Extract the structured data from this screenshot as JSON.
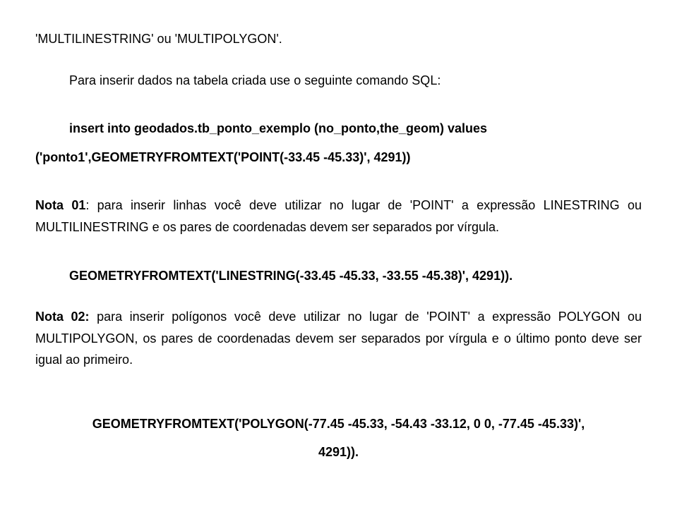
{
  "line1": "'MULTILINESTRING' ou 'MULTIPOLYGON'.",
  "line2": "Para inserir dados na tabela criada use o seguinte comando SQL:",
  "code_block_1_line1": "insert into geodados.tb_ponto_exemplo (no_ponto,the_geom) values",
  "code_block_1_line2": "('ponto1',GEOMETRYFROMTEXT('POINT(-33.45 -45.33)', 4291))",
  "nota01_label": "Nota 01",
  "nota01_text": ": para inserir linhas você deve utilizar no lugar de 'POINT' a expressão LINESTRING ou MULTILINESTRING e os pares de coordenadas devem ser separados por vírgula.",
  "code_block_2": "GEOMETRYFROMTEXT('LINESTRING(-33.45 -45.33, -33.55 -45.38)', 4291)).",
  "nota02_label": "Nota 02:",
  "nota02_text": " para inserir polígonos você deve utilizar no lugar de 'POINT' a expressão POLYGON ou MULTIPOLYGON, os pares de coordenadas devem ser separados por vírgula e o último ponto deve ser igual ao primeiro.",
  "code_block_3_line1": "GEOMETRYFROMTEXT('POLYGON(-77.45 -45.33, -54.43 -33.12, 0 0, -77.45 -45.33)',",
  "code_block_3_line2": "4291))."
}
